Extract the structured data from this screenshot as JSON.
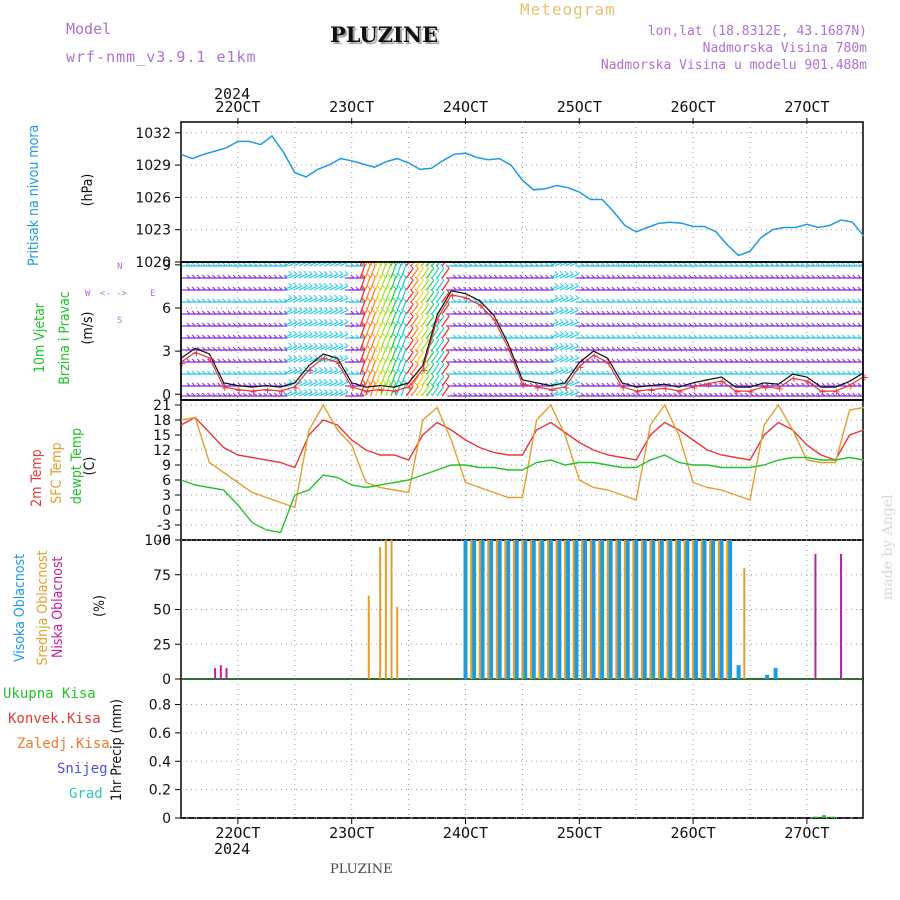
{
  "header": {
    "model_label": "Model",
    "model_value": "wrf-nmm_v3.9.1  e1km",
    "title": "PLUZINE",
    "meteogram": "Meteogram",
    "lonlat": "lon,lat (18.8312E, 43.1687N)",
    "elevation": "Nadmorska Visina 780m",
    "model_elevation": "Nadmorska Visina u modelu 901.488m",
    "year_top": "2024",
    "year_bottom": "2024",
    "footer": "PLUZINE",
    "watermark": "made by Angel"
  },
  "colors": {
    "pressure": "#1e9be0",
    "temp2m": "#e8393a",
    "sfc": "#e0a030",
    "dewpt": "#22c42a",
    "high_cloud": "#1e9be0",
    "mid_cloud": "#e0a030",
    "low_cloud": "#c020a0",
    "wind_purple": "#8a2be2",
    "wind_cyan": "#28c8e8",
    "model_purple": "#b070d0"
  },
  "panel_labels": {
    "pressure": [
      "Pritisak na nivou mora",
      "(hPa)"
    ],
    "wind": [
      "10m Vjetar",
      "Brzina i Pravac",
      "(m/s)"
    ],
    "wind_rose": [
      "N",
      "W",
      "E",
      "S",
      "<- ->"
    ],
    "temp": [
      "2m Temp",
      "SFC Temp",
      "dewpt Temp",
      "(C)"
    ],
    "cloud": [
      "Visoka Oblacnost",
      "Srednja Oblacnost",
      "Niska Oblacnost",
      "(%)"
    ],
    "precip_axis": "1hr Precip (mm)",
    "precip_legend": [
      "Ukupna Kisa",
      "Konvek.Kisa",
      "Zaledj.Kisa",
      "Snijeg",
      "Grad"
    ]
  },
  "chart_data": [
    {
      "type": "line",
      "name": "pressure",
      "ylabel": "(hPa)",
      "ylim": [
        1020,
        1033
      ],
      "yticks": [
        "1032",
        "1029",
        "1026",
        "1023",
        "1020"
      ],
      "x_day": [
        0,
        0.2,
        0.4,
        0.6,
        0.8,
        1.0,
        1.2,
        1.4,
        1.6,
        1.8,
        2.0,
        2.2,
        2.4,
        2.6,
        2.8,
        3.0,
        3.2,
        3.4,
        3.6,
        3.8,
        4.0,
        4.2,
        4.4,
        4.6,
        4.8,
        5.0,
        5.2,
        5.4,
        5.6,
        5.8,
        6.0,
        6.2,
        6.4,
        6.6,
        6.8,
        7.0,
        7.2,
        7.4,
        7.6,
        7.8,
        8.0,
        8.2,
        8.4,
        8.6,
        8.8,
        9.0,
        9.2,
        9.4,
        9.6,
        9.8,
        10.0,
        10.2,
        10.4,
        10.6,
        10.8,
        11.0,
        11.2,
        11.4,
        11.6,
        11.8,
        12.0
      ],
      "values": [
        1030.0,
        1029.6,
        1030.0,
        1030.3,
        1030.6,
        1031.2,
        1031.2,
        1030.9,
        1031.7,
        1030.2,
        1028.3,
        1027.9,
        1028.6,
        1029.0,
        1029.6,
        1029.4,
        1029.1,
        1028.8,
        1029.3,
        1029.6,
        1029.2,
        1028.6,
        1028.7,
        1029.4,
        1030.0,
        1030.1,
        1029.7,
        1029.5,
        1029.6,
        1029.0,
        1027.6,
        1026.7,
        1026.8,
        1027.1,
        1026.9,
        1026.5,
        1025.8,
        1025.8,
        1024.7,
        1023.4,
        1022.8,
        1023.2,
        1023.6,
        1023.7,
        1023.6,
        1023.3,
        1023.3,
        1022.8,
        1021.6,
        1020.6,
        1021.0,
        1022.3,
        1023.0,
        1023.2,
        1023.2,
        1023.5,
        1023.2,
        1023.4,
        1023.9,
        1023.7,
        1022.4
      ]
    },
    {
      "type": "line",
      "name": "wind",
      "ylabel": "(m/s)",
      "ylim": [
        -0.4,
        9.2
      ],
      "yticks": [
        "9",
        "6",
        "3",
        "0"
      ],
      "x_day": [
        0,
        0.25,
        0.5,
        0.75,
        1.0,
        1.25,
        1.5,
        1.75,
        2.0,
        2.25,
        2.5,
        2.75,
        3.0,
        3.25,
        3.5,
        3.75,
        4.0,
        4.25,
        4.5,
        4.75,
        5.0,
        5.25,
        5.5,
        5.75,
        6.0,
        6.25,
        6.5,
        6.75,
        7.0,
        7.25,
        7.5,
        7.75,
        8.0,
        8.25,
        8.5,
        8.75,
        9.0,
        9.25,
        9.5,
        9.75,
        10.0,
        10.25,
        10.5,
        10.75,
        11.0,
        11.25,
        11.5,
        11.75,
        12.0
      ],
      "values": [
        2.5,
        3.2,
        2.8,
        0.8,
        0.6,
        0.5,
        0.6,
        0.5,
        0.8,
        2.0,
        2.8,
        2.5,
        0.8,
        0.5,
        0.6,
        0.5,
        0.8,
        2.0,
        5.5,
        7.2,
        7.0,
        6.5,
        5.5,
        3.5,
        1.0,
        0.8,
        0.6,
        0.8,
        2.2,
        3.0,
        2.5,
        0.8,
        0.5,
        0.6,
        0.7,
        0.5,
        0.8,
        1.0,
        1.2,
        0.5,
        0.5,
        0.8,
        0.7,
        1.4,
        1.2,
        0.5,
        0.5,
        0.9,
        1.5
      ]
    },
    {
      "type": "line",
      "name": "temperature",
      "ylabel": "(C)",
      "ylim": [
        -6,
        22
      ],
      "yticks": [
        "21",
        "18",
        "15",
        "12",
        "9",
        "6",
        "3",
        "0",
        "-3",
        "-6"
      ],
      "x_day": [
        0,
        0.25,
        0.5,
        0.75,
        1.0,
        1.25,
        1.5,
        1.75,
        2.0,
        2.25,
        2.5,
        2.75,
        3.0,
        3.25,
        3.5,
        3.75,
        4.0,
        4.25,
        4.5,
        4.75,
        5.0,
        5.25,
        5.5,
        5.75,
        6.0,
        6.25,
        6.5,
        6.75,
        7.0,
        7.25,
        7.5,
        7.75,
        8.0,
        8.25,
        8.5,
        8.75,
        9.0,
        9.25,
        9.5,
        9.75,
        10.0,
        10.25,
        10.5,
        10.75,
        11.0,
        11.25,
        11.5,
        11.75,
        12.0
      ],
      "series": [
        {
          "name": "2m Temp",
          "values": [
            17,
            18.5,
            15.5,
            12.5,
            11,
            10.5,
            10,
            9.5,
            8.5,
            15,
            18,
            17,
            14,
            12,
            11,
            11,
            10,
            15,
            17.5,
            16,
            14,
            12.5,
            11.5,
            11,
            11,
            16,
            17.5,
            15.5,
            13.5,
            12,
            11,
            10.5,
            10,
            15,
            17.5,
            16,
            14,
            12,
            11,
            10.5,
            10,
            15,
            17.5,
            16,
            13,
            11,
            10,
            15,
            16
          ]
        },
        {
          "name": "SFC Temp",
          "values": [
            18,
            18.5,
            9.5,
            7.5,
            5.5,
            3.5,
            2.5,
            1.5,
            0.5,
            16,
            21,
            16,
            13,
            5.5,
            4.5,
            4,
            3.5,
            18,
            20.5,
            14,
            5.5,
            4.5,
            3.5,
            2.5,
            2.5,
            18,
            21,
            15,
            6,
            4.5,
            4,
            3,
            2,
            17,
            21,
            15,
            5.5,
            4.5,
            4,
            3,
            2,
            17,
            21,
            16,
            10,
            9.5,
            9.5,
            20,
            20.5
          ]
        },
        {
          "name": "dewpt Temp",
          "values": [
            6,
            5,
            4.5,
            4,
            1,
            -2.5,
            -4,
            -4.5,
            3,
            4,
            7,
            6.5,
            5,
            4.5,
            5,
            5.5,
            6,
            7,
            8,
            9,
            9,
            8.5,
            8.5,
            8,
            8,
            9.5,
            10,
            9,
            9.5,
            9.5,
            9,
            8.5,
            8.5,
            10,
            11,
            9.5,
            9,
            9,
            8.5,
            8.5,
            8.5,
            9,
            10,
            10.5,
            10.5,
            10,
            10,
            10.5,
            10
          ]
        }
      ]
    },
    {
      "type": "bar",
      "name": "cloud",
      "ylabel": "(%)",
      "ylim": [
        0,
        100
      ],
      "yticks": [
        "100",
        "75",
        "50",
        "25",
        "0"
      ],
      "series": [
        {
          "name": "Visoka Oblacnost",
          "x_day": [
            5.0,
            5.15,
            5.3,
            5.45,
            5.6,
            5.75,
            5.9,
            6.05,
            6.2,
            6.35,
            6.5,
            6.65,
            6.8,
            6.95,
            7.1,
            7.25,
            7.4,
            7.55,
            7.7,
            7.85,
            8.0,
            8.15,
            8.3,
            8.45,
            8.6,
            8.75,
            8.9,
            9.05,
            9.2,
            9.35,
            9.5,
            9.65,
            9.8,
            10.3,
            10.45
          ],
          "values": [
            100,
            100,
            100,
            100,
            100,
            100,
            100,
            100,
            100,
            100,
            100,
            100,
            100,
            100,
            100,
            100,
            100,
            100,
            100,
            100,
            100,
            100,
            100,
            100,
            100,
            100,
            100,
            100,
            100,
            100,
            100,
            100,
            10,
            3,
            8
          ]
        },
        {
          "name": "Srednja Oblacnost",
          "x_day": [
            3.3,
            3.5,
            3.6,
            3.7,
            3.8,
            5.1,
            5.25,
            5.4,
            5.55,
            5.7,
            5.85,
            6.0,
            6.15,
            6.3,
            6.45,
            6.6,
            6.75,
            6.9,
            7.05,
            7.2,
            7.35,
            7.5,
            7.65,
            7.8,
            7.95,
            8.1,
            8.25,
            8.4,
            8.55,
            8.7,
            8.85,
            9.0,
            9.15,
            9.3,
            9.45,
            9.6,
            9.9
          ],
          "values": [
            60,
            95,
            100,
            100,
            52,
            100,
            100,
            100,
            100,
            100,
            100,
            100,
            100,
            100,
            100,
            100,
            100,
            100,
            100,
            100,
            100,
            100,
            100,
            100,
            100,
            100,
            100,
            100,
            100,
            100,
            100,
            100,
            100,
            100,
            100,
            100,
            80
          ]
        },
        {
          "name": "Niska Oblacnost",
          "x_day": [
            0.6,
            0.7,
            0.8,
            11.15,
            11.6
          ],
          "values": [
            8,
            10,
            8,
            90,
            90
          ]
        }
      ]
    },
    {
      "type": "bar",
      "name": "precip",
      "ylabel": "1hr Precip (mm)",
      "ylim": [
        0,
        0.98
      ],
      "yticks": [
        "0.8",
        "0.6",
        "0.4",
        "0.2",
        "0"
      ],
      "x_day": [
        11.15,
        11.3,
        11.45
      ],
      "values": [
        0.01,
        0.02,
        0.01
      ]
    }
  ],
  "x_axis": {
    "labels": [
      "22OCT",
      "23OCT",
      "24OCT",
      "25OCT",
      "26OCT",
      "27OCT"
    ],
    "label_day": [
      0.5,
      1.5,
      2.5,
      3.5,
      4.5,
      5.5
    ]
  }
}
